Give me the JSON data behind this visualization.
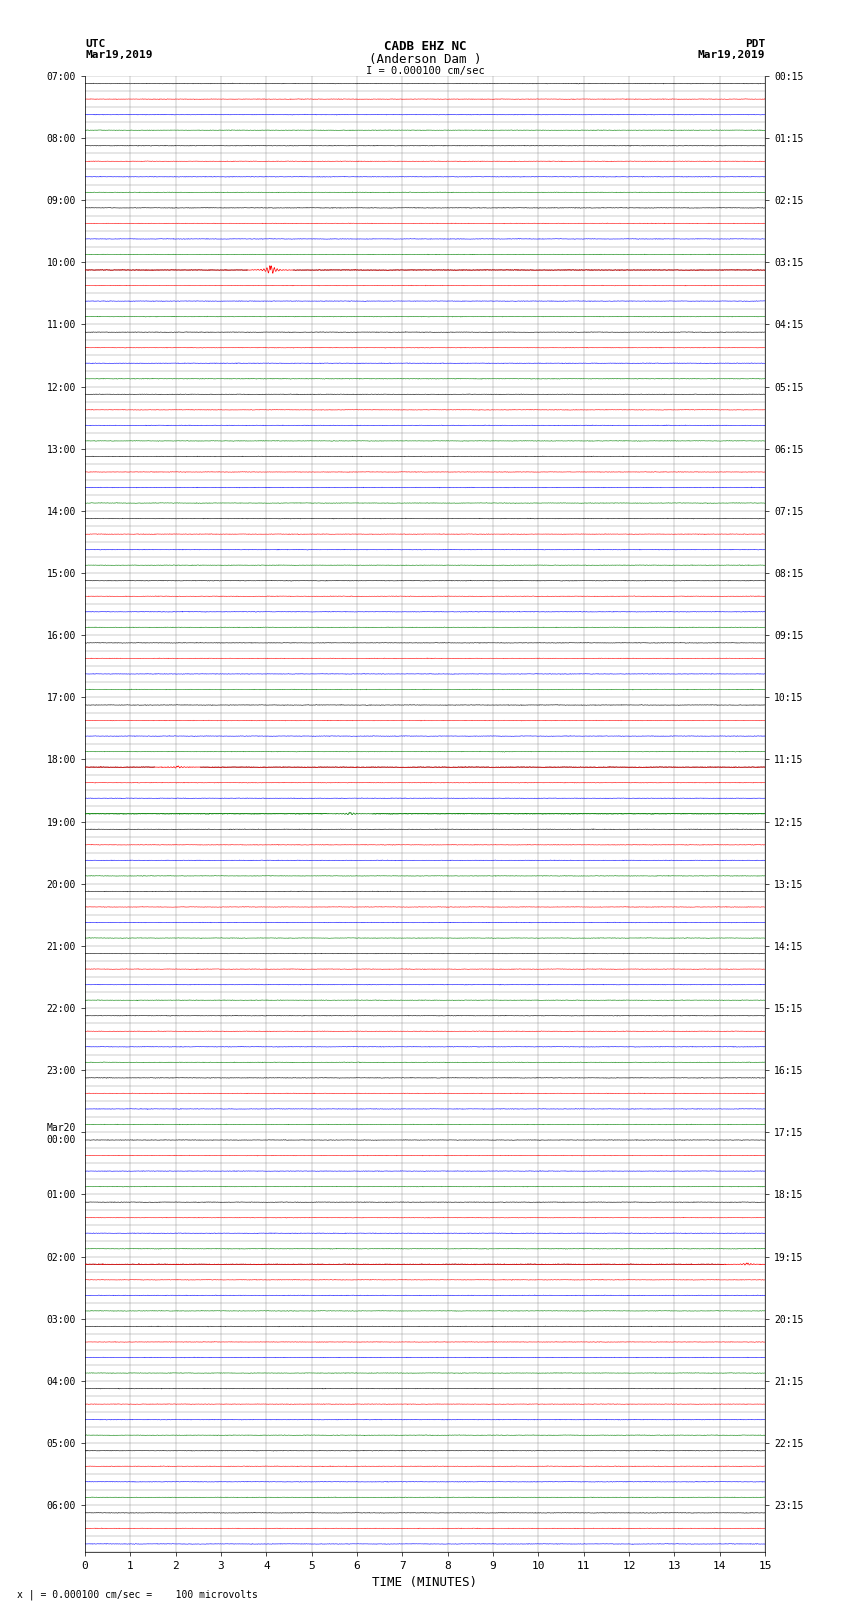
{
  "title_line1": "CADB EHZ NC",
  "title_line2": "(Anderson Dam )",
  "scale_label": "I = 0.000100 cm/sec",
  "left_header_line1": "UTC",
  "left_header_line2": "Mar19,2019",
  "right_header_line1": "PDT",
  "right_header_line2": "Mar19,2019",
  "bottom_note": "x | = 0.000100 cm/sec =    100 microvolts",
  "xlabel": "TIME (MINUTES)",
  "x_ticks": [
    0,
    1,
    2,
    3,
    4,
    5,
    6,
    7,
    8,
    9,
    10,
    11,
    12,
    13,
    14,
    15
  ],
  "left_times": [
    "07:00",
    "",
    "",
    "",
    "08:00",
    "",
    "",
    "",
    "09:00",
    "",
    "",
    "",
    "10:00",
    "",
    "",
    "",
    "11:00",
    "",
    "",
    "",
    "12:00",
    "",
    "",
    "",
    "13:00",
    "",
    "",
    "",
    "14:00",
    "",
    "",
    "",
    "15:00",
    "",
    "",
    "",
    "16:00",
    "",
    "",
    "",
    "17:00",
    "",
    "",
    "",
    "18:00",
    "",
    "",
    "",
    "19:00",
    "",
    "",
    "",
    "20:00",
    "",
    "",
    "",
    "21:00",
    "",
    "",
    "",
    "22:00",
    "",
    "",
    "",
    "23:00",
    "",
    "",
    "",
    "Mar20\n00:00",
    "",
    "",
    "",
    "01:00",
    "",
    "",
    "",
    "02:00",
    "",
    "",
    "",
    "03:00",
    "",
    "",
    "",
    "04:00",
    "",
    "",
    "",
    "05:00",
    "",
    "",
    "",
    "06:00",
    "",
    ""
  ],
  "right_times": [
    "00:15",
    "",
    "",
    "",
    "01:15",
    "",
    "",
    "",
    "02:15",
    "",
    "",
    "",
    "03:15",
    "",
    "",
    "",
    "04:15",
    "",
    "",
    "",
    "05:15",
    "",
    "",
    "",
    "06:15",
    "",
    "",
    "",
    "07:15",
    "",
    "",
    "",
    "08:15",
    "",
    "",
    "",
    "09:15",
    "",
    "",
    "",
    "10:15",
    "",
    "",
    "",
    "11:15",
    "",
    "",
    "",
    "12:15",
    "",
    "",
    "",
    "13:15",
    "",
    "",
    "",
    "14:15",
    "",
    "",
    "",
    "15:15",
    "",
    "",
    "",
    "16:15",
    "",
    "",
    "",
    "17:15",
    "",
    "",
    "",
    "18:15",
    "",
    "",
    "",
    "19:15",
    "",
    "",
    "",
    "20:15",
    "",
    "",
    "",
    "21:15",
    "",
    "",
    "",
    "22:15",
    "",
    "",
    "",
    "23:15",
    "",
    ""
  ],
  "n_rows": 95,
  "trace_colors": [
    "black",
    "red",
    "blue",
    "green"
  ],
  "bg_color": "white",
  "grid_color": "#888888",
  "noise_amplitude": 0.008,
  "spike_rows": {
    "12": {
      "color": "red",
      "x": 4.1,
      "amp": 0.32
    },
    "44": {
      "color": "red",
      "x": 2.05,
      "amp": 0.09
    },
    "47": {
      "color": "green",
      "x": 5.85,
      "amp": 0.1
    },
    "76": {
      "color": "red",
      "x": 14.6,
      "amp": 0.09
    }
  }
}
